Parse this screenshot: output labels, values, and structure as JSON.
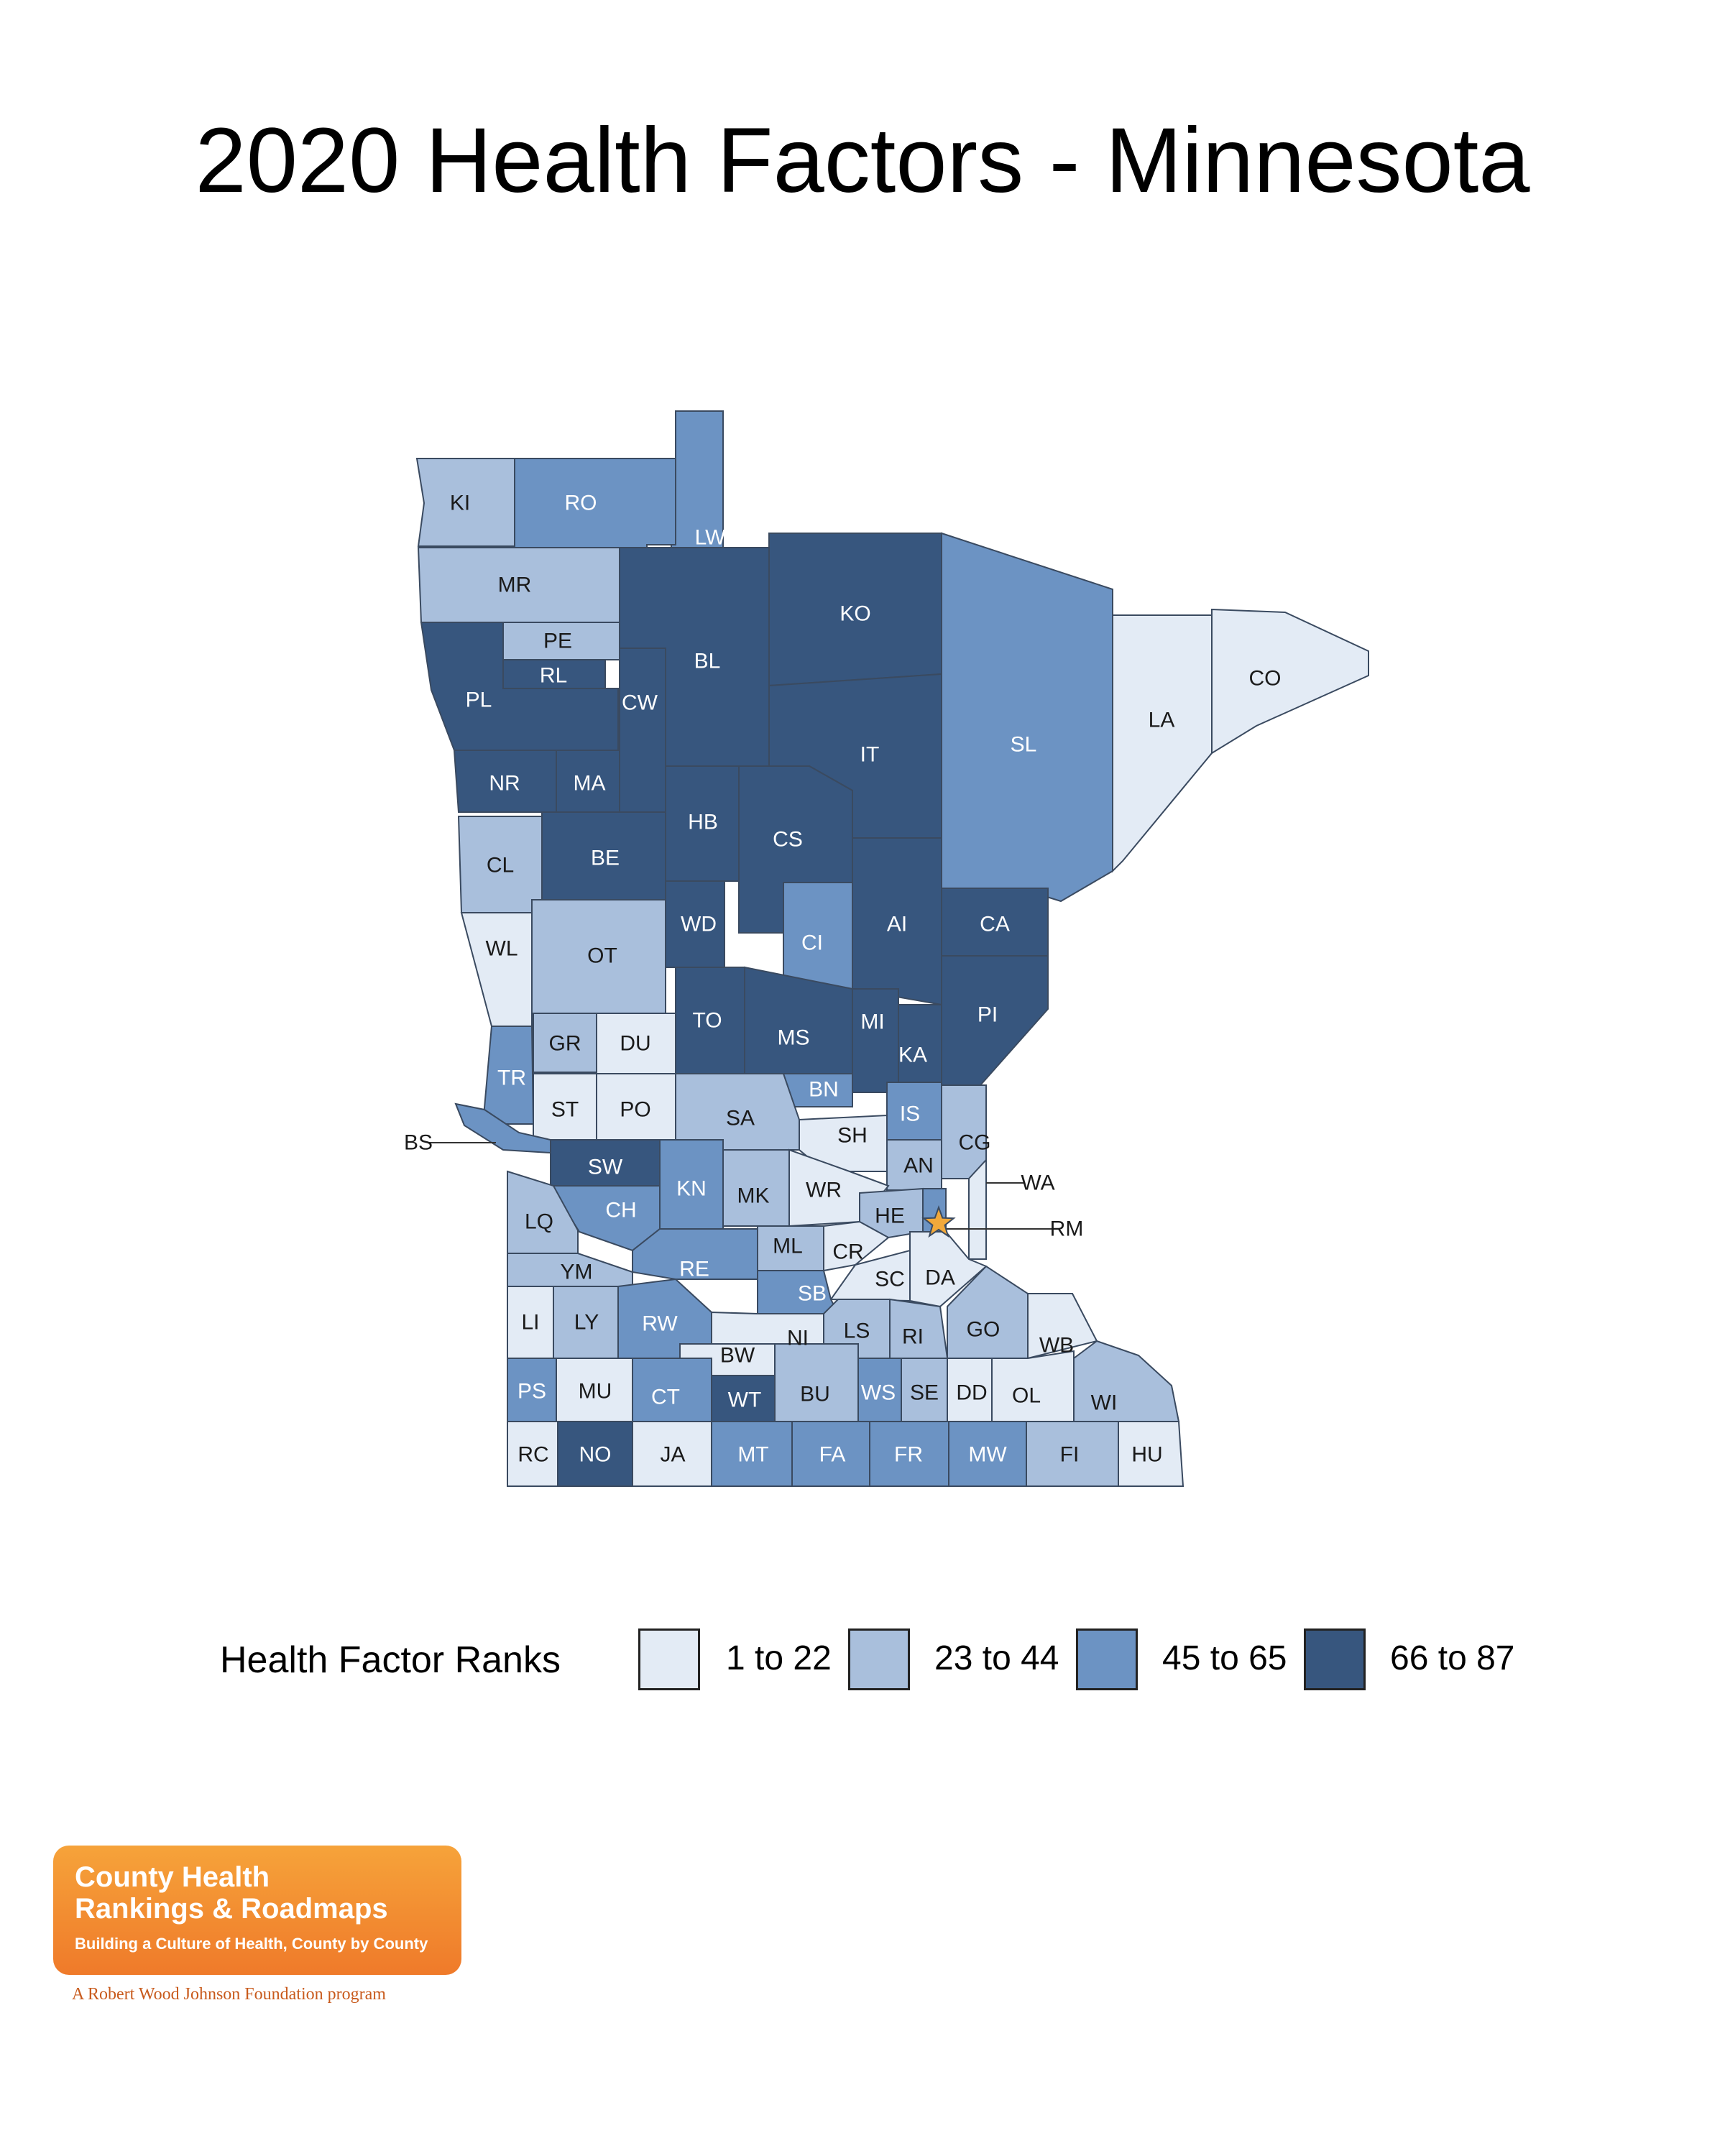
{
  "title": "2020 Health Factors - Minnesota",
  "legend": {
    "title": "Health Factor Ranks",
    "items": [
      {
        "label": "1 to 22",
        "color": "#e3ebf5"
      },
      {
        "label": "23 to 44",
        "color": "#a9bfdc"
      },
      {
        "label": "45 to 65",
        "color": "#6c93c3"
      },
      {
        "label": "66 to 87",
        "color": "#37567e"
      }
    ]
  },
  "counties": [
    {
      "abbr": "KI",
      "tier": 1
    },
    {
      "abbr": "RO",
      "tier": 2
    },
    {
      "abbr": "LW",
      "tier": 2
    },
    {
      "abbr": "MR",
      "tier": 1
    },
    {
      "abbr": "PE",
      "tier": 1
    },
    {
      "abbr": "RL",
      "tier": 3
    },
    {
      "abbr": "PL",
      "tier": 3
    },
    {
      "abbr": "CW",
      "tier": 3
    },
    {
      "abbr": "BL",
      "tier": 3
    },
    {
      "abbr": "KO",
      "tier": 3
    },
    {
      "abbr": "IT",
      "tier": 3
    },
    {
      "abbr": "SL",
      "tier": 2
    },
    {
      "abbr": "LA",
      "tier": 0
    },
    {
      "abbr": "CO",
      "tier": 0
    },
    {
      "abbr": "NR",
      "tier": 3
    },
    {
      "abbr": "MA",
      "tier": 3
    },
    {
      "abbr": "HB",
      "tier": 3
    },
    {
      "abbr": "CS",
      "tier": 3
    },
    {
      "abbr": "CL",
      "tier": 1
    },
    {
      "abbr": "BE",
      "tier": 3
    },
    {
      "abbr": "WD",
      "tier": 3
    },
    {
      "abbr": "CI",
      "tier": 2
    },
    {
      "abbr": "AI",
      "tier": 3
    },
    {
      "abbr": "CA",
      "tier": 3
    },
    {
      "abbr": "WL",
      "tier": 0
    },
    {
      "abbr": "OT",
      "tier": 1
    },
    {
      "abbr": "TO",
      "tier": 3
    },
    {
      "abbr": "MS",
      "tier": 3
    },
    {
      "abbr": "MI",
      "tier": 3
    },
    {
      "abbr": "PI",
      "tier": 3
    },
    {
      "abbr": "GR",
      "tier": 1
    },
    {
      "abbr": "DU",
      "tier": 0
    },
    {
      "abbr": "KA",
      "tier": 3
    },
    {
      "abbr": "TR",
      "tier": 2
    },
    {
      "abbr": "BN",
      "tier": 2
    },
    {
      "abbr": "ST",
      "tier": 0
    },
    {
      "abbr": "PO",
      "tier": 0
    },
    {
      "abbr": "SA",
      "tier": 1
    },
    {
      "abbr": "IS",
      "tier": 2
    },
    {
      "abbr": "SH",
      "tier": 0
    },
    {
      "abbr": "CG",
      "tier": 1
    },
    {
      "abbr": "SW",
      "tier": 3
    },
    {
      "abbr": "AN",
      "tier": 1
    },
    {
      "abbr": "KN",
      "tier": 2
    },
    {
      "abbr": "MK",
      "tier": 1
    },
    {
      "abbr": "WR",
      "tier": 0
    },
    {
      "abbr": "CH",
      "tier": 2
    },
    {
      "abbr": "LQ",
      "tier": 1
    },
    {
      "abbr": "HE",
      "tier": 1
    },
    {
      "abbr": "WA",
      "tier": 0
    },
    {
      "abbr": "RM",
      "tier": 2
    },
    {
      "abbr": "ML",
      "tier": 1
    },
    {
      "abbr": "CR",
      "tier": 0
    },
    {
      "abbr": "RE",
      "tier": 2
    },
    {
      "abbr": "YM",
      "tier": 1
    },
    {
      "abbr": "SC",
      "tier": 0
    },
    {
      "abbr": "DA",
      "tier": 0
    },
    {
      "abbr": "SB",
      "tier": 2
    },
    {
      "abbr": "LI",
      "tier": 0
    },
    {
      "abbr": "LY",
      "tier": 1
    },
    {
      "abbr": "RW",
      "tier": 2
    },
    {
      "abbr": "NI",
      "tier": 0
    },
    {
      "abbr": "LS",
      "tier": 1
    },
    {
      "abbr": "RI",
      "tier": 1
    },
    {
      "abbr": "GO",
      "tier": 1
    },
    {
      "abbr": "WB",
      "tier": 0
    },
    {
      "abbr": "BW",
      "tier": 0
    },
    {
      "abbr": "PS",
      "tier": 2
    },
    {
      "abbr": "MU",
      "tier": 0
    },
    {
      "abbr": "CT",
      "tier": 2
    },
    {
      "abbr": "WT",
      "tier": 3
    },
    {
      "abbr": "BU",
      "tier": 1
    },
    {
      "abbr": "WS",
      "tier": 2
    },
    {
      "abbr": "SE",
      "tier": 1
    },
    {
      "abbr": "DD",
      "tier": 0
    },
    {
      "abbr": "OL",
      "tier": 0
    },
    {
      "abbr": "WI",
      "tier": 1
    },
    {
      "abbr": "RC",
      "tier": 0
    },
    {
      "abbr": "NO",
      "tier": 3
    },
    {
      "abbr": "JA",
      "tier": 0
    },
    {
      "abbr": "MT",
      "tier": 2
    },
    {
      "abbr": "FA",
      "tier": 2
    },
    {
      "abbr": "FR",
      "tier": 2
    },
    {
      "abbr": "MW",
      "tier": 2
    },
    {
      "abbr": "FI",
      "tier": 1
    },
    {
      "abbr": "HU",
      "tier": 0
    },
    {
      "abbr": "BS",
      "tier": 2
    }
  ],
  "callouts": [
    "BS",
    "WA",
    "RM"
  ],
  "logo": {
    "line1": "County Health",
    "line2": "Rankings & Roadmaps",
    "tagline": "Building a Culture of Health, County by County",
    "sub": "A Robert Wood Johnson Foundation program"
  }
}
